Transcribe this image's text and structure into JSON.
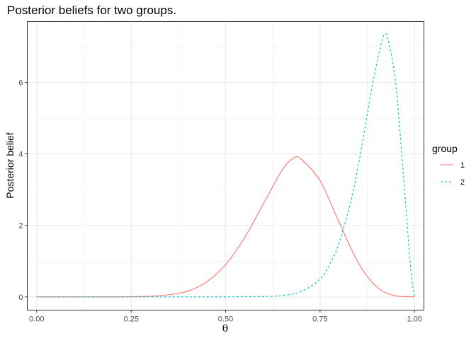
{
  "chart_data": {
    "type": "line",
    "title": "Posterior beliefs for two groups.",
    "xlabel": "θ",
    "ylabel": "Posterior belief",
    "xlim": [
      -0.025,
      1.025
    ],
    "ylim": [
      -0.37,
      7.7
    ],
    "x_ticks": [
      "0.00",
      "0.25",
      "0.50",
      "0.75",
      "1.00"
    ],
    "x_tick_values": [
      0,
      0.25,
      0.5,
      0.75,
      1.0
    ],
    "x_minor_values": [
      0.125,
      0.375,
      0.625,
      0.875
    ],
    "y_ticks": [
      "0",
      "2",
      "4",
      "6"
    ],
    "y_tick_values": [
      0,
      2,
      4,
      6
    ],
    "y_minor_values": [
      1,
      3,
      5,
      7
    ],
    "grid": true,
    "legend": {
      "title": "group",
      "position": "right"
    },
    "series": [
      {
        "name": "1",
        "color": "#F8766D",
        "linetype": "solid",
        "x": [
          0,
          0.05,
          0.1,
          0.15,
          0.2,
          0.25,
          0.3,
          0.35,
          0.4,
          0.45,
          0.5,
          0.55,
          0.6,
          0.65,
          0.68,
          0.7,
          0.75,
          0.8,
          0.85,
          0.9,
          0.95,
          1.0
        ],
        "values": [
          0,
          0,
          0,
          0,
          0,
          0.005,
          0.02,
          0.06,
          0.16,
          0.42,
          0.9,
          1.65,
          2.6,
          3.55,
          3.88,
          3.85,
          3.25,
          2.1,
          0.98,
          0.28,
          0.03,
          0
        ]
      },
      {
        "name": "2",
        "color": "#00BFC4",
        "linetype": "dashed",
        "x": [
          0,
          0.1,
          0.2,
          0.3,
          0.4,
          0.5,
          0.6,
          0.65,
          0.7,
          0.75,
          0.78,
          0.8,
          0.83,
          0.85,
          0.87,
          0.89,
          0.91,
          0.92,
          0.93,
          0.95,
          0.97,
          0.99,
          1.0
        ],
        "values": [
          0,
          0,
          0,
          0,
          0,
          0,
          0.01,
          0.04,
          0.15,
          0.5,
          1.0,
          1.5,
          2.6,
          3.6,
          4.8,
          6.0,
          7.0,
          7.33,
          7.2,
          6.0,
          3.5,
          0.8,
          0
        ]
      }
    ]
  }
}
